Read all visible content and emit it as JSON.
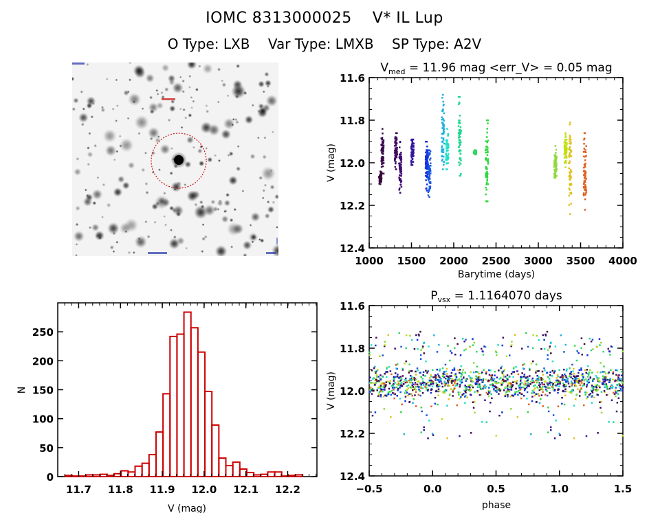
{
  "header": {
    "title_id": "IOMC 8313000025",
    "title_name": "V* IL Lup",
    "otype": "O Type: LXB",
    "vartype": "Var Type: LMXB",
    "sptype": "SP Type: A2V"
  },
  "finder_chart": {
    "marker_color": "#cc1111",
    "labels_note": "illegible"
  },
  "chart_data": [
    {
      "type": "scatter",
      "name": "light-curve",
      "title_prefix": "V",
      "title_sub": "med",
      "title_rest": " = 11.96 mag <err_V> = 0.05 mag",
      "xlabel": "Barytime (days)",
      "ylabel": "V (mag)",
      "xlim": [
        1000,
        4000
      ],
      "ylim": [
        12.4,
        11.6
      ],
      "xticks": [
        "1000",
        "1500",
        "2000",
        "2500",
        "3000",
        "3500",
        "4000"
      ],
      "yticks": [
        "11.6",
        "11.8",
        "12.0",
        "12.2",
        "12.4"
      ],
      "groups": [
        {
          "x": 1130,
          "ymin": 12.04,
          "ymax": 12.1,
          "color": "#3a0a3a"
        },
        {
          "x": 1155,
          "ymin": 11.84,
          "ymax": 12.05,
          "color": "#3a0a4a"
        },
        {
          "x": 1315,
          "ymin": 11.86,
          "ymax": 12.03,
          "color": "#400a60"
        },
        {
          "x": 1365,
          "ymin": 11.9,
          "ymax": 12.14,
          "color": "#400a70"
        },
        {
          "x": 1510,
          "ymin": 11.89,
          "ymax": 12.01,
          "color": "#3018a0"
        },
        {
          "x": 1680,
          "ymin": 11.9,
          "ymax": 12.13,
          "color": "#1030e0"
        },
        {
          "x": 1710,
          "ymin": 11.94,
          "ymax": 12.16,
          "color": "#1858e0"
        },
        {
          "x": 1870,
          "ymin": 11.68,
          "ymax": 12.03,
          "color": "#20b0e0"
        },
        {
          "x": 1920,
          "ymin": 11.84,
          "ymax": 12.03,
          "color": "#20e0c8"
        },
        {
          "x": 2070,
          "ymin": 11.69,
          "ymax": 12.06,
          "color": "#20d890"
        },
        {
          "x": 2250,
          "ymin": 11.94,
          "ymax": 11.96,
          "color": "#30d860"
        },
        {
          "x": 2390,
          "ymin": 11.8,
          "ymax": 12.18,
          "color": "#30d840"
        },
        {
          "x": 3200,
          "ymin": 11.92,
          "ymax": 12.07,
          "color": "#90d840"
        },
        {
          "x": 3320,
          "ymin": 11.86,
          "ymax": 12.02,
          "color": "#c0e010"
        },
        {
          "x": 3375,
          "ymin": 11.81,
          "ymax": 12.24,
          "color": "#e0c020"
        },
        {
          "x": 3550,
          "ymin": 11.86,
          "ymax": 12.22,
          "color": "#e06020"
        }
      ]
    },
    {
      "type": "bar",
      "name": "histogram",
      "xlabel": "V (mag)",
      "ylabel": "N",
      "xlim": [
        11.65,
        12.27
      ],
      "ylim": [
        0,
        300
      ],
      "xticks": [
        "11.7",
        "11.8",
        "11.9",
        "12.0",
        "12.1",
        "12.2"
      ],
      "yticks": [
        "0",
        "50",
        "100",
        "150",
        "200",
        "250"
      ],
      "bar_color": "#cc0000",
      "bin_start": 11.668,
      "bin_width": 0.0167,
      "values": [
        2,
        1,
        1,
        3,
        3,
        4,
        2,
        5,
        10,
        8,
        18,
        23,
        38,
        77,
        143,
        242,
        246,
        284,
        257,
        215,
        147,
        89,
        32,
        19,
        25,
        13,
        7,
        3,
        4,
        8,
        8,
        1,
        2,
        3
      ]
    },
    {
      "type": "scatter",
      "name": "phase-plot",
      "title_prefix": "P",
      "title_sub": "vsx",
      "title_rest": " = 1.1164070 days",
      "xlabel": "phase",
      "ylabel": "V (mag)",
      "xlim": [
        -0.5,
        1.5
      ],
      "ylim": [
        12.4,
        11.6
      ],
      "xticks": [
        "-0.5",
        "0.0",
        "0.5",
        "1.0",
        "1.5"
      ],
      "yticks": [
        "11.6",
        "11.8",
        "12.0",
        "12.2",
        "12.4"
      ],
      "median": 11.96,
      "period_days": 1.116407
    }
  ]
}
